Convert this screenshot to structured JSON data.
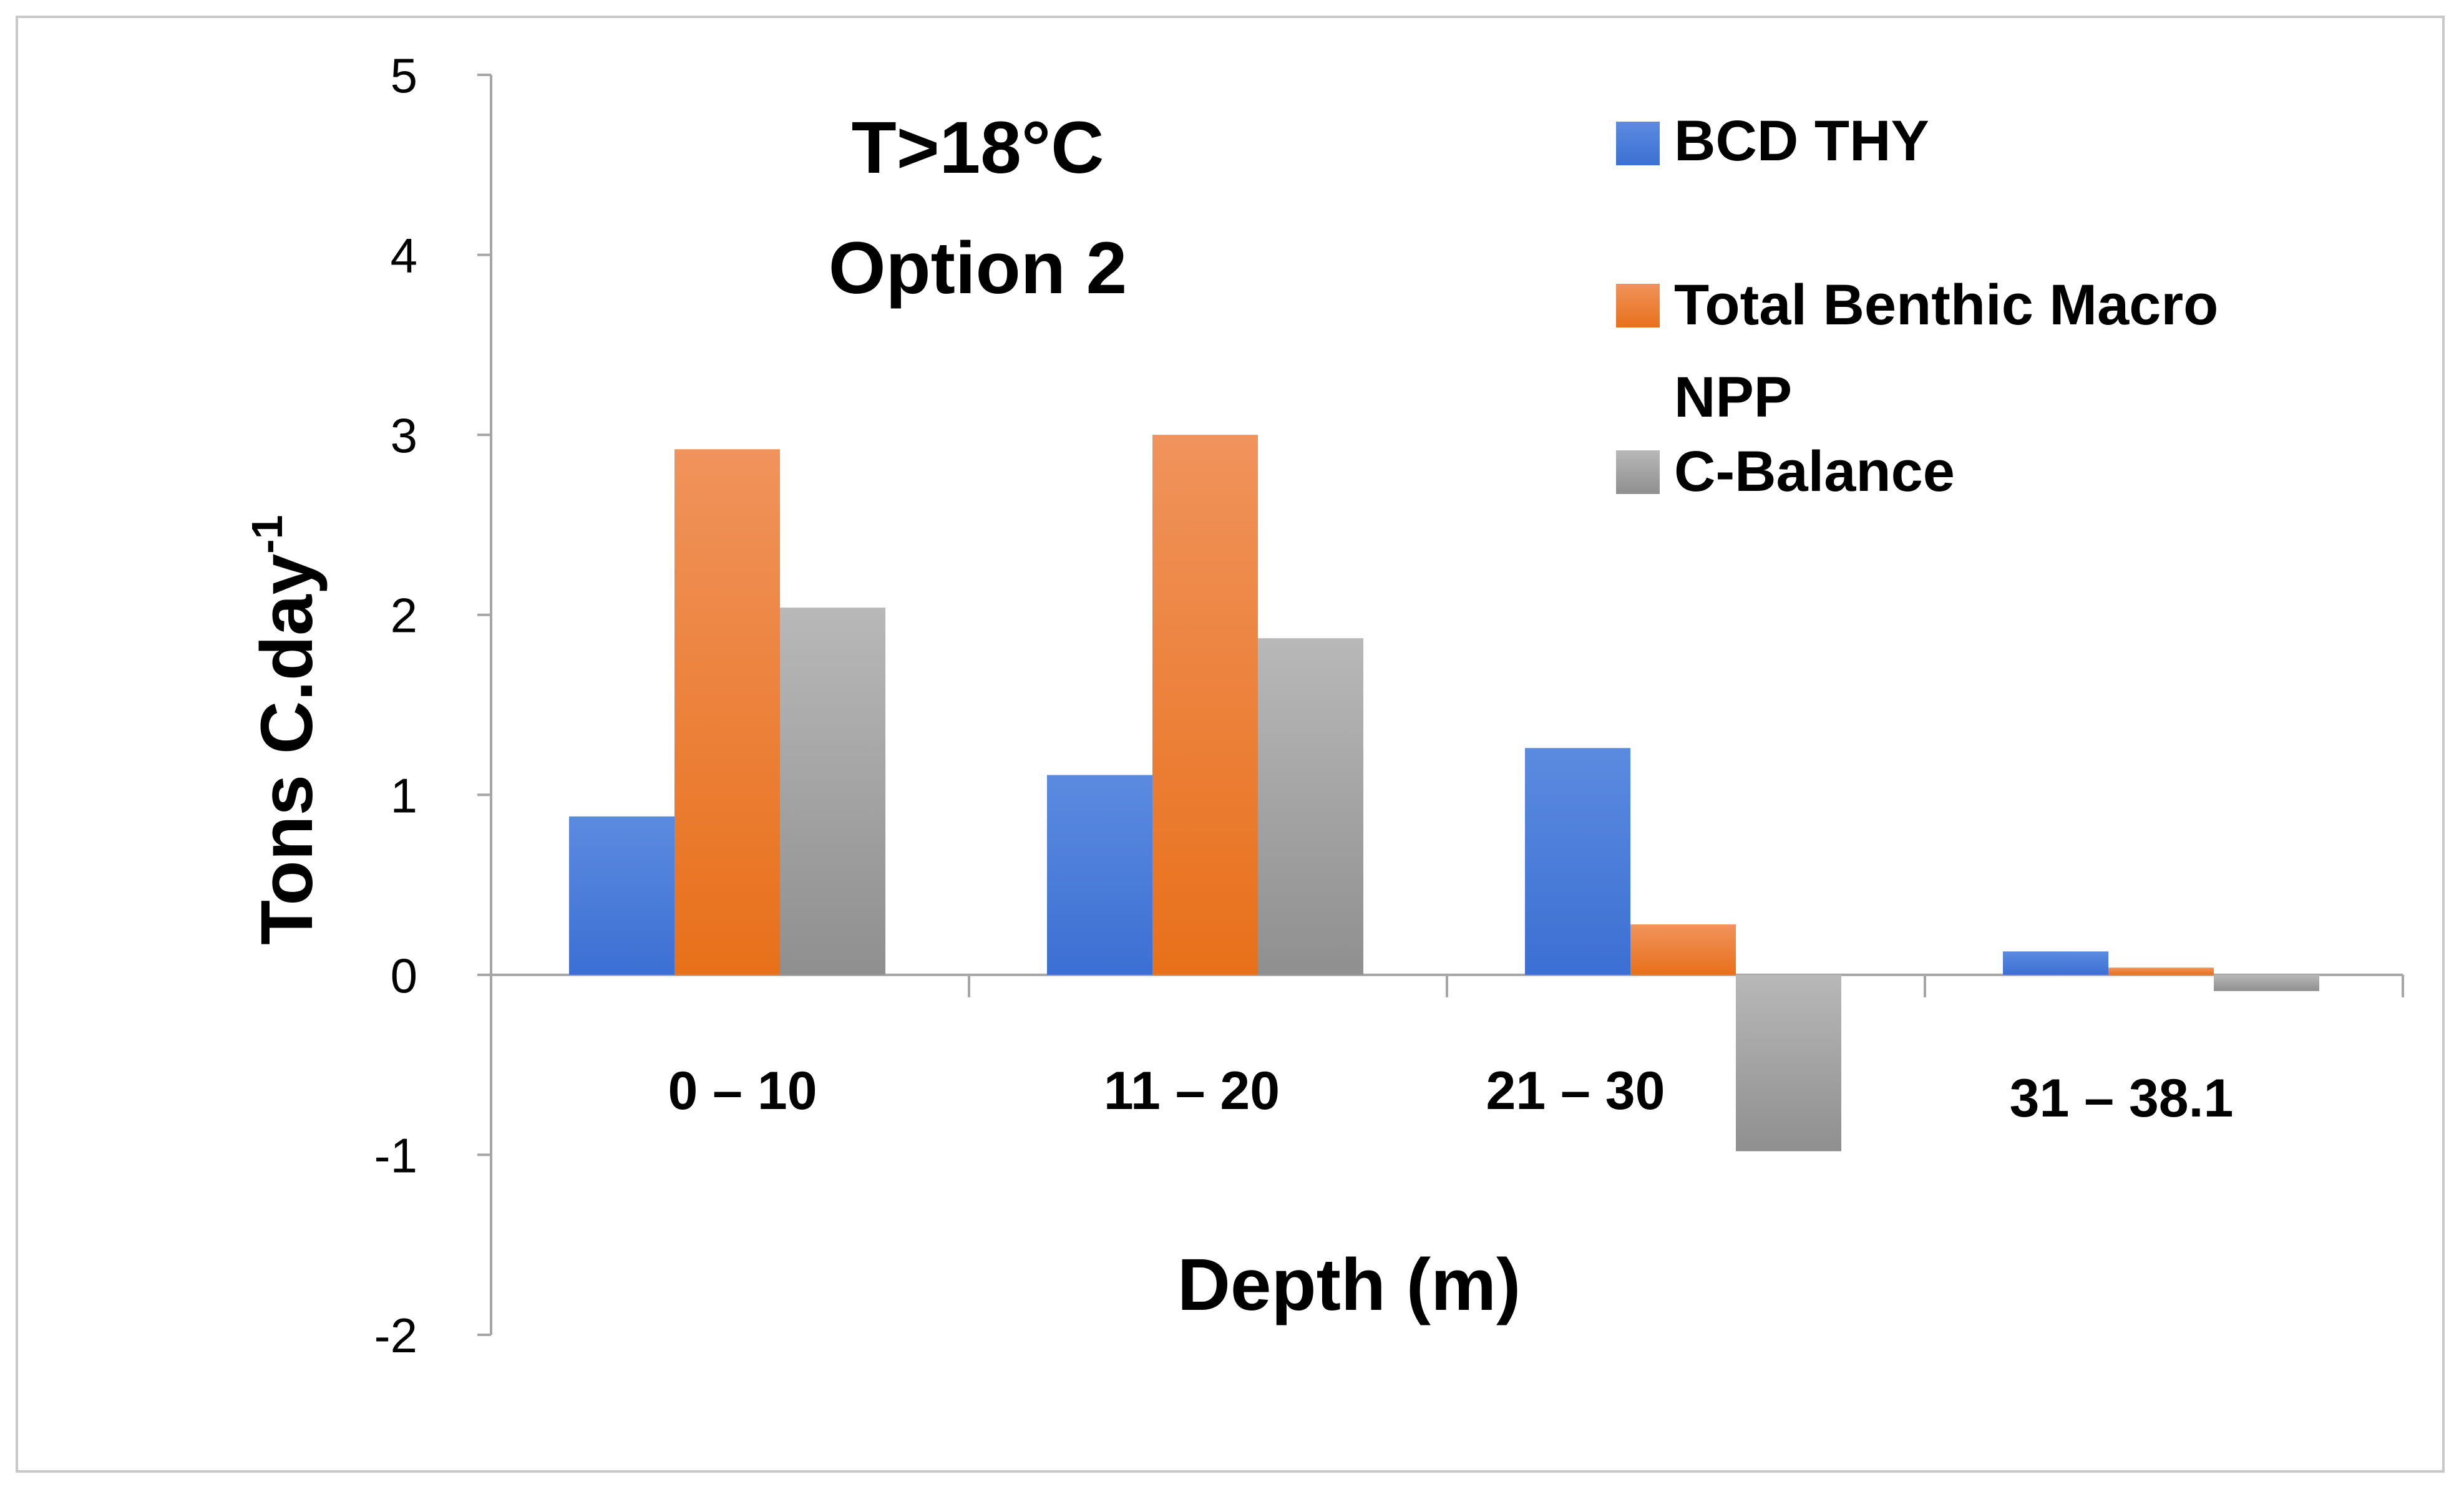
{
  "chart_data": {
    "type": "bar",
    "title_lines": [
      "T>18°C",
      "Option 2"
    ],
    "xlabel": "Depth (m)",
    "ylabel": "Tons C.day",
    "ylabel_superscript": "-1",
    "categories": [
      "0 – 10",
      "11 – 20",
      "21 – 30",
      "31 – 38.1"
    ],
    "series": [
      {
        "name": "BCD THY",
        "color": "#3C6FD3",
        "color_light": "#5B8BE0",
        "values": [
          0.88,
          1.11,
          1.26,
          0.13
        ]
      },
      {
        "name": "Total Benthic Macro NPP",
        "legend_lines": [
          "Total Benthic Macro",
          "NPP"
        ],
        "color": "#E8701A",
        "color_light": "#F0935C",
        "values": [
          2.92,
          3.0,
          0.28,
          0.04
        ]
      },
      {
        "name": "C-Balance",
        "color": "#8F8F8F",
        "color_light": "#B8B8B8",
        "values": [
          2.04,
          1.87,
          -0.98,
          -0.09
        ]
      }
    ],
    "ylim": [
      -2,
      5
    ],
    "yticks": [
      5,
      4,
      3,
      2,
      1,
      0,
      -1,
      -2
    ],
    "legend_position": "top-right",
    "grid": false
  }
}
